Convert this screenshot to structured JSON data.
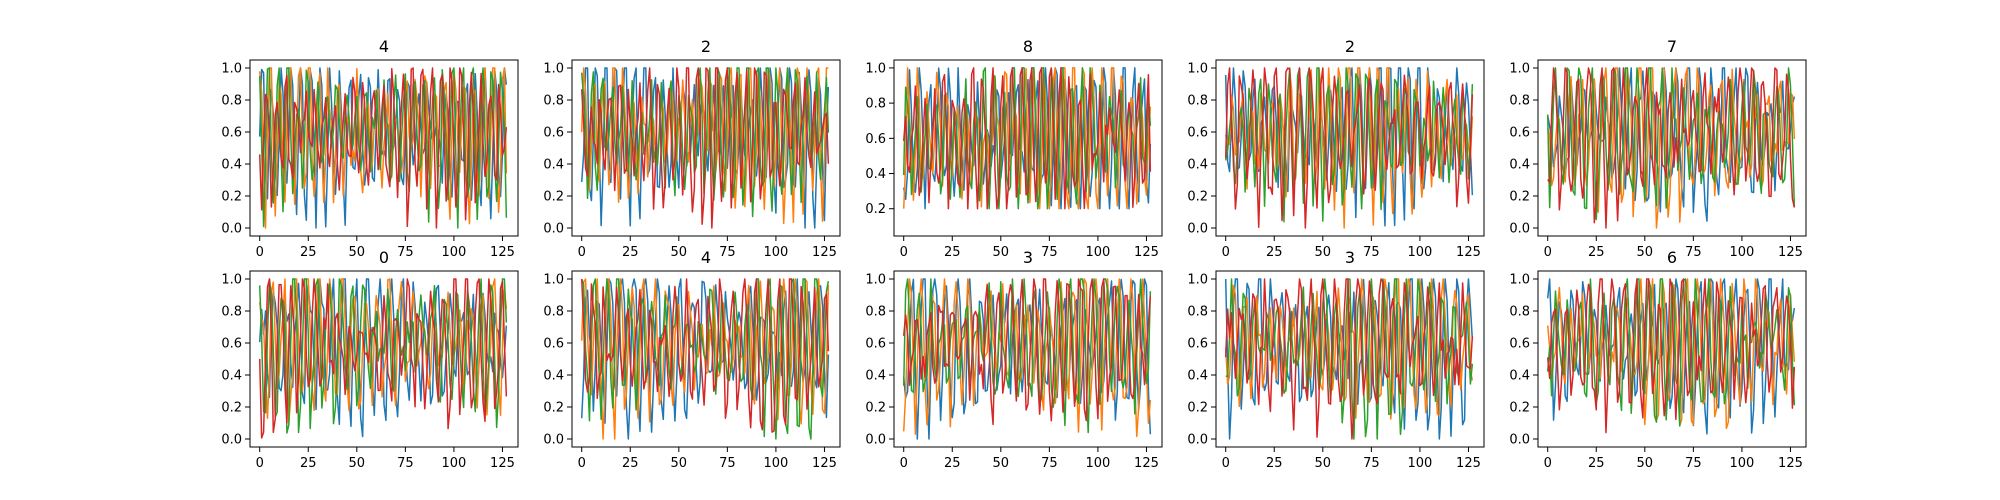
{
  "colors": {
    "series": [
      "#1f77b4",
      "#ff7f0e",
      "#2ca02c",
      "#d62728"
    ],
    "axes": "#000000",
    "background": "#ffffff"
  },
  "chart_data": [
    {
      "type": "line",
      "title": "4",
      "xlim": [
        -5,
        133
      ],
      "ylim": [
        -0.05,
        1.05
      ],
      "xticks": [
        0,
        25,
        50,
        75,
        100,
        125
      ],
      "xtick_labels": [
        "0",
        "25",
        "50",
        "75",
        "100",
        "125"
      ],
      "yticks": [
        0.0,
        0.2,
        0.4,
        0.6,
        0.8,
        1.0
      ],
      "ytick_labels": [
        "0.0",
        "0.2",
        "0.4",
        "0.6",
        "0.8",
        "1.0"
      ],
      "n_points": 128,
      "series_count": 4,
      "grid": false,
      "legend": "none"
    },
    {
      "type": "line",
      "title": "2",
      "xlim": [
        -5,
        133
      ],
      "ylim": [
        -0.05,
        1.05
      ],
      "xticks": [
        0,
        25,
        50,
        75,
        100,
        125
      ],
      "xtick_labels": [
        "0",
        "25",
        "50",
        "75",
        "100",
        "125"
      ],
      "yticks": [
        0.0,
        0.2,
        0.4,
        0.6,
        0.8,
        1.0
      ],
      "ytick_labels": [
        "0.0",
        "0.2",
        "0.4",
        "0.6",
        "0.8",
        "1.0"
      ],
      "n_points": 128,
      "series_count": 4,
      "grid": false,
      "legend": "none"
    },
    {
      "type": "line",
      "title": "8",
      "xlim": [
        -5,
        133
      ],
      "ylim": [
        0.045,
        1.045
      ],
      "xticks": [
        0,
        25,
        50,
        75,
        100,
        125
      ],
      "xtick_labels": [
        "0",
        "25",
        "50",
        "75",
        "100",
        "125"
      ],
      "yticks": [
        0.2,
        0.4,
        0.6,
        0.8,
        1.0
      ],
      "ytick_labels": [
        "0.2",
        "0.4",
        "0.6",
        "0.8",
        "1.0"
      ],
      "n_points": 128,
      "series_count": 4,
      "grid": false,
      "legend": "none"
    },
    {
      "type": "line",
      "title": "2",
      "xlim": [
        -5,
        133
      ],
      "ylim": [
        -0.05,
        1.05
      ],
      "xticks": [
        0,
        25,
        50,
        75,
        100,
        125
      ],
      "xtick_labels": [
        "0",
        "25",
        "50",
        "75",
        "100",
        "125"
      ],
      "yticks": [
        0.0,
        0.2,
        0.4,
        0.6,
        0.8,
        1.0
      ],
      "ytick_labels": [
        "0.0",
        "0.2",
        "0.4",
        "0.6",
        "0.8",
        "1.0"
      ],
      "n_points": 128,
      "series_count": 4,
      "grid": false,
      "legend": "none"
    },
    {
      "type": "line",
      "title": "7",
      "xlim": [
        -5,
        133
      ],
      "ylim": [
        -0.05,
        1.05
      ],
      "xticks": [
        0,
        25,
        50,
        75,
        100,
        125
      ],
      "xtick_labels": [
        "0",
        "25",
        "50",
        "75",
        "100",
        "125"
      ],
      "yticks": [
        0.0,
        0.2,
        0.4,
        0.6,
        0.8,
        1.0
      ],
      "ytick_labels": [
        "0.0",
        "0.2",
        "0.4",
        "0.6",
        "0.8",
        "1.0"
      ],
      "n_points": 128,
      "series_count": 4,
      "grid": false,
      "legend": "none"
    },
    {
      "type": "line",
      "title": "0",
      "xlim": [
        -5,
        133
      ],
      "ylim": [
        -0.05,
        1.05
      ],
      "xticks": [
        0,
        25,
        50,
        75,
        100,
        125
      ],
      "xtick_labels": [
        "0",
        "25",
        "50",
        "75",
        "100",
        "125"
      ],
      "yticks": [
        0.0,
        0.2,
        0.4,
        0.6,
        0.8,
        1.0
      ],
      "ytick_labels": [
        "0.0",
        "0.2",
        "0.4",
        "0.6",
        "0.8",
        "1.0"
      ],
      "n_points": 128,
      "series_count": 4,
      "grid": false,
      "legend": "none"
    },
    {
      "type": "line",
      "title": "4",
      "xlim": [
        -5,
        133
      ],
      "ylim": [
        -0.05,
        1.05
      ],
      "xticks": [
        0,
        25,
        50,
        75,
        100,
        125
      ],
      "xtick_labels": [
        "0",
        "25",
        "50",
        "75",
        "100",
        "125"
      ],
      "yticks": [
        0.0,
        0.2,
        0.4,
        0.6,
        0.8,
        1.0
      ],
      "ytick_labels": [
        "0.0",
        "0.2",
        "0.4",
        "0.6",
        "0.8",
        "1.0"
      ],
      "n_points": 128,
      "series_count": 4,
      "grid": false,
      "legend": "none"
    },
    {
      "type": "line",
      "title": "3",
      "xlim": [
        -5,
        133
      ],
      "ylim": [
        -0.05,
        1.05
      ],
      "xticks": [
        0,
        25,
        50,
        75,
        100,
        125
      ],
      "xtick_labels": [
        "0",
        "25",
        "50",
        "75",
        "100",
        "125"
      ],
      "yticks": [
        0.0,
        0.2,
        0.4,
        0.6,
        0.8,
        1.0
      ],
      "ytick_labels": [
        "0.0",
        "0.2",
        "0.4",
        "0.6",
        "0.8",
        "1.0"
      ],
      "n_points": 128,
      "series_count": 4,
      "grid": false,
      "legend": "none"
    },
    {
      "type": "line",
      "title": "3",
      "xlim": [
        -5,
        133
      ],
      "ylim": [
        -0.05,
        1.05
      ],
      "xticks": [
        0,
        25,
        50,
        75,
        100,
        125
      ],
      "xtick_labels": [
        "0",
        "25",
        "50",
        "75",
        "100",
        "125"
      ],
      "yticks": [
        0.0,
        0.2,
        0.4,
        0.6,
        0.8,
        1.0
      ],
      "ytick_labels": [
        "0.0",
        "0.2",
        "0.4",
        "0.6",
        "0.8",
        "1.0"
      ],
      "n_points": 128,
      "series_count": 4,
      "grid": false,
      "legend": "none"
    },
    {
      "type": "line",
      "title": "6",
      "xlim": [
        -5,
        133
      ],
      "ylim": [
        -0.05,
        1.05
      ],
      "xticks": [
        0,
        25,
        50,
        75,
        100,
        125
      ],
      "xtick_labels": [
        "0",
        "25",
        "50",
        "75",
        "100",
        "125"
      ],
      "yticks": [
        0.0,
        0.2,
        0.4,
        0.6,
        0.8,
        1.0
      ],
      "ytick_labels": [
        "0.0",
        "0.2",
        "0.4",
        "0.6",
        "0.8",
        "1.0"
      ],
      "n_points": 128,
      "series_count": 4,
      "grid": false,
      "legend": "none"
    }
  ]
}
